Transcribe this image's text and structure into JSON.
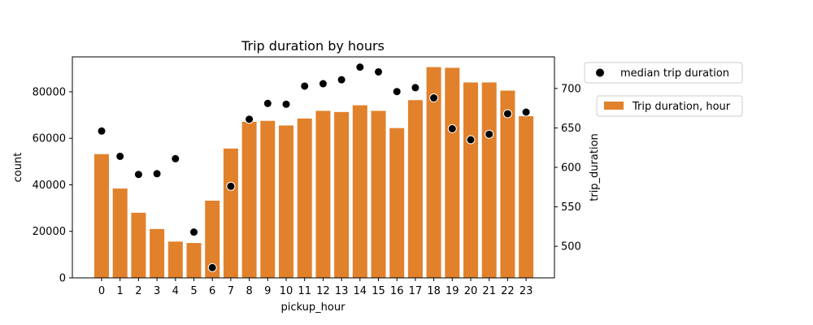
{
  "chart_data": {
    "type": "bar+scatter",
    "title": "Trip duration by hours",
    "xlabel": "pickup_hour",
    "ylabel": "count",
    "y2label": "trip_duration",
    "categories": [
      "0",
      "1",
      "2",
      "3",
      "4",
      "5",
      "6",
      "7",
      "8",
      "9",
      "10",
      "11",
      "12",
      "13",
      "14",
      "15",
      "16",
      "17",
      "18",
      "19",
      "20",
      "21",
      "22",
      "23"
    ],
    "ylim": [
      0,
      95000
    ],
    "y2lim": [
      460,
      740
    ],
    "yticks": [
      0,
      20000,
      40000,
      60000,
      80000
    ],
    "y2ticks": [
      500,
      550,
      600,
      650,
      700
    ],
    "grid": false,
    "legend_placement": "outside-right",
    "series": [
      {
        "name": "Trip duration, hour",
        "type": "bar",
        "axis": "left",
        "color": "#e1812c",
        "values": [
          53200,
          38400,
          28000,
          21000,
          15600,
          15000,
          33200,
          55600,
          67100,
          67500,
          65500,
          68500,
          71800,
          71300,
          74200,
          71800,
          64400,
          76400,
          90600,
          90300,
          84000,
          84000,
          80500,
          69500
        ]
      },
      {
        "name": "median trip duration",
        "type": "scatter",
        "axis": "right",
        "color": "#000000",
        "values": [
          646,
          614,
          591,
          592,
          611,
          518,
          473,
          576,
          661,
          681,
          680,
          703,
          706,
          711,
          727,
          721,
          696,
          701,
          688,
          649,
          635,
          642,
          668,
          670
        ]
      }
    ]
  }
}
